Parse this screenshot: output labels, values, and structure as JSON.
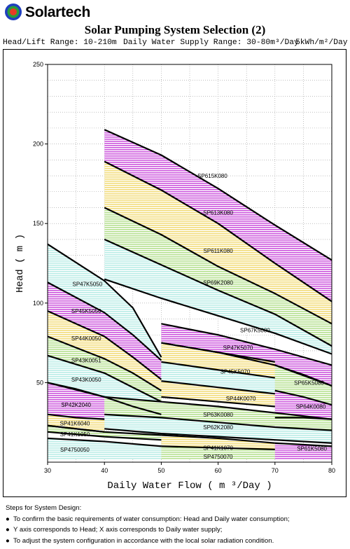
{
  "brand": {
    "name": "Solartech",
    "logo_icon": "circle-logo-icon"
  },
  "header": {
    "title": "Solar Pumping System Selection (2)",
    "head_range": "Head/Lift Range: 10-210m",
    "supply_range": "Daily Water Supply Range: 30-80m³/Day",
    "solar": "5kWh/m²/Day"
  },
  "chart_data": {
    "type": "area",
    "xlabel": "Daily Water Flow ( m ³/Day )",
    "ylabel": "Head ( m )",
    "xlim": [
      30,
      80
    ],
    "ylim": [
      0,
      250
    ],
    "xticks": [
      "30",
      "40",
      "50",
      "60",
      "70",
      "80"
    ],
    "yticks": [
      "50",
      "100",
      "150",
      "200",
      "250"
    ],
    "grid": true,
    "series": [
      {
        "name": "SP615K080",
        "color": "#cc55dd",
        "upper": [
          [
            40,
            209
          ],
          [
            50,
            193
          ],
          [
            60,
            172
          ],
          [
            70,
            149
          ],
          [
            80,
            127
          ]
        ],
        "lower": [
          [
            40,
            189
          ],
          [
            50,
            171
          ],
          [
            60,
            150
          ],
          [
            70,
            125
          ],
          [
            80,
            101
          ]
        ]
      },
      {
        "name": "SP613K080",
        "color": "#f2dc7a",
        "upper": [
          [
            40,
            189
          ],
          [
            50,
            171
          ],
          [
            60,
            150
          ],
          [
            70,
            125
          ],
          [
            80,
            101
          ]
        ],
        "lower": [
          [
            40,
            160
          ],
          [
            50,
            143
          ],
          [
            60,
            123
          ],
          [
            70,
            106
          ],
          [
            80,
            87
          ]
        ]
      },
      {
        "name": "SP611K080",
        "color": "#b5e08f",
        "upper": [
          [
            40,
            160
          ],
          [
            50,
            143
          ],
          [
            60,
            123
          ],
          [
            70,
            106
          ],
          [
            80,
            87
          ]
        ],
        "lower": [
          [
            40,
            140
          ],
          [
            50,
            124
          ],
          [
            60,
            108
          ],
          [
            70,
            93
          ],
          [
            80,
            73
          ]
        ]
      },
      {
        "name": "SP69K2080",
        "color": "#b9ece6",
        "upper": [
          [
            40,
            140
          ],
          [
            50,
            124
          ],
          [
            60,
            108
          ],
          [
            70,
            93
          ],
          [
            80,
            73
          ]
        ],
        "lower": [
          [
            40,
            115
          ],
          [
            50,
            103
          ],
          [
            60,
            92
          ],
          [
            70,
            81
          ],
          [
            80,
            68
          ]
        ]
      },
      {
        "name": "SP47K5050",
        "color": "#b9ece6",
        "upper": [
          [
            30,
            137
          ],
          [
            40,
            114
          ],
          [
            45,
            97
          ],
          [
            50,
            66
          ]
        ],
        "lower": [
          [
            30,
            113
          ],
          [
            40,
            94
          ],
          [
            45,
            80
          ],
          [
            50,
            64
          ]
        ]
      },
      {
        "name": "SP45K5050",
        "color": "#cc55dd",
        "upper": [
          [
            30,
            113
          ],
          [
            40,
            94
          ],
          [
            45,
            80
          ],
          [
            50,
            64
          ]
        ],
        "lower": [
          [
            30,
            95
          ],
          [
            40,
            79
          ],
          [
            45,
            66
          ],
          [
            50,
            52
          ]
        ]
      },
      {
        "name": "SP44K0050",
        "color": "#f2dc7a",
        "upper": [
          [
            30,
            95
          ],
          [
            40,
            79
          ],
          [
            45,
            66
          ],
          [
            50,
            52
          ]
        ],
        "lower": [
          [
            30,
            79
          ],
          [
            40,
            65
          ],
          [
            45,
            56
          ],
          [
            50,
            45
          ]
        ]
      },
      {
        "name": "SP43K0051",
        "color": "#b5e08f",
        "upper": [
          [
            30,
            79
          ],
          [
            40,
            65
          ],
          [
            45,
            56
          ],
          [
            50,
            45
          ]
        ],
        "lower": [
          [
            30,
            67
          ],
          [
            40,
            56
          ],
          [
            45,
            47
          ],
          [
            50,
            38
          ]
        ]
      },
      {
        "name": "SP43K0050",
        "color": "#b9ece6",
        "upper": [
          [
            30,
            67
          ],
          [
            40,
            56
          ],
          [
            45,
            47
          ],
          [
            50,
            38
          ]
        ],
        "lower": [
          [
            30,
            50
          ],
          [
            40,
            41
          ],
          [
            45,
            35
          ],
          [
            50,
            30
          ]
        ]
      },
      {
        "name": "SP42K2040",
        "color": "#cc55dd",
        "upper": [
          [
            30,
            50
          ],
          [
            35,
            46
          ],
          [
            40,
            41
          ]
        ],
        "lower": [
          [
            30,
            30
          ],
          [
            35,
            28
          ],
          [
            40,
            27
          ]
        ]
      },
      {
        "name": "SP67K5080",
        "color": "#cc55dd",
        "upper": [
          [
            50,
            87
          ],
          [
            60,
            80
          ],
          [
            70,
            71
          ],
          [
            80,
            61
          ]
        ],
        "lower": [
          [
            50,
            75
          ],
          [
            60,
            69
          ],
          [
            70,
            61
          ],
          [
            80,
            48
          ]
        ]
      },
      {
        "name": "SP47K5070",
        "color": "#f2dc7a",
        "upper": [
          [
            50,
            75
          ],
          [
            60,
            69
          ],
          [
            70,
            63
          ]
        ],
        "lower": [
          [
            50,
            63
          ],
          [
            60,
            58
          ],
          [
            70,
            53
          ]
        ]
      },
      {
        "name": "SP45K5070",
        "color": "#b9ece6",
        "upper": [
          [
            50,
            63
          ],
          [
            60,
            58
          ],
          [
            70,
            53
          ]
        ],
        "lower": [
          [
            50,
            51
          ],
          [
            60,
            47
          ],
          [
            70,
            43
          ]
        ]
      },
      {
        "name": "SP65K5080",
        "color": "#b5e08f",
        "upper": [
          [
            70,
            61
          ],
          [
            75,
            55
          ],
          [
            80,
            48
          ]
        ],
        "lower": [
          [
            70,
            45
          ],
          [
            75,
            41
          ],
          [
            80,
            36
          ]
        ]
      },
      {
        "name": "SP44K0070",
        "color": "#f2dc7a",
        "upper": [
          [
            50,
            51
          ],
          [
            60,
            47
          ],
          [
            70,
            43
          ]
        ],
        "lower": [
          [
            50,
            41
          ],
          [
            60,
            38
          ],
          [
            70,
            35
          ]
        ]
      },
      {
        "name": "SP64K0080",
        "color": "#cc55dd",
        "upper": [
          [
            70,
            45
          ],
          [
            75,
            41
          ],
          [
            80,
            36
          ]
        ],
        "lower": [
          [
            70,
            28
          ],
          [
            75,
            28
          ],
          [
            80,
            27
          ]
        ]
      },
      {
        "name": "SP63K0080",
        "color": "#b5e08f",
        "upper": [
          [
            40,
            41
          ],
          [
            50,
            38
          ],
          [
            60,
            35
          ],
          [
            70,
            31
          ],
          [
            80,
            27
          ]
        ],
        "lower": [
          [
            40,
            30
          ],
          [
            50,
            28
          ],
          [
            60,
            25
          ],
          [
            70,
            22
          ],
          [
            80,
            20
          ]
        ]
      },
      {
        "name": "SP62K2080",
        "color": "#b9ece6",
        "upper": [
          [
            40,
            30
          ],
          [
            50,
            28
          ],
          [
            60,
            25
          ],
          [
            70,
            22
          ],
          [
            80,
            20
          ]
        ],
        "lower": [
          [
            40,
            21
          ],
          [
            50,
            18
          ],
          [
            60,
            16
          ],
          [
            70,
            14
          ],
          [
            80,
            12
          ]
        ]
      },
      {
        "name": "SP41K6040",
        "color": "#f2dc7a",
        "upper": [
          [
            30,
            30
          ],
          [
            35,
            28
          ],
          [
            40,
            27
          ]
        ],
        "lower": [
          [
            30,
            23
          ],
          [
            35,
            21
          ],
          [
            40,
            19
          ]
        ]
      },
      {
        "name": "SP41K1050",
        "color": "#b5e08f",
        "upper": [
          [
            30,
            23
          ],
          [
            40,
            19
          ],
          [
            50,
            17
          ]
        ],
        "lower": [
          [
            30,
            19
          ],
          [
            40,
            16
          ],
          [
            50,
            14
          ]
        ]
      },
      {
        "name": "SP4750050",
        "color": "#b9ece6",
        "upper": [
          [
            30,
            15
          ],
          [
            40,
            13
          ],
          [
            50,
            10
          ]
        ],
        "lower": [
          [
            30,
            2
          ],
          [
            40,
            2
          ],
          [
            50,
            2
          ]
        ]
      },
      {
        "name": "SP41K1070",
        "color": "#f2dc7a",
        "upper": [
          [
            50,
            17
          ],
          [
            60,
            15
          ],
          [
            70,
            12
          ]
        ],
        "lower": [
          [
            50,
            10
          ],
          [
            60,
            9
          ],
          [
            70,
            8
          ]
        ]
      },
      {
        "name": "SP4750070",
        "color": "#b5e08f",
        "upper": [
          [
            50,
            10
          ],
          [
            60,
            9
          ],
          [
            70,
            8
          ]
        ],
        "lower": [
          [
            50,
            2
          ],
          [
            60,
            2
          ],
          [
            70,
            2
          ]
        ]
      },
      {
        "name": "SP61K5080",
        "color": "#cc55dd",
        "upper": [
          [
            70,
            12
          ],
          [
            75,
            11
          ],
          [
            80,
            10
          ]
        ],
        "lower": [
          [
            70,
            2
          ],
          [
            75,
            2
          ],
          [
            80,
            2
          ]
        ]
      }
    ],
    "labels": [
      {
        "text": "SP615K080",
        "x": 59,
        "y": 180
      },
      {
        "text": "SP613K080",
        "x": 60,
        "y": 157
      },
      {
        "text": "SP611K080",
        "x": 60,
        "y": 133
      },
      {
        "text": "SP69K2080",
        "x": 60,
        "y": 113
      },
      {
        "text": "SP47K5050",
        "x": 37,
        "y": 112
      },
      {
        "text": "SP45K5050",
        "x": 36.8,
        "y": 95
      },
      {
        "text": "SP44K0050",
        "x": 36.8,
        "y": 78
      },
      {
        "text": "SP43K0051",
        "x": 36.8,
        "y": 64
      },
      {
        "text": "SP43K0050",
        "x": 36.8,
        "y": 52
      },
      {
        "text": "SP42K2040",
        "x": 35,
        "y": 36
      },
      {
        "text": "SP67K5080",
        "x": 66.5,
        "y": 83
      },
      {
        "text": "SP47K5070",
        "x": 63.5,
        "y": 72
      },
      {
        "text": "SP45K5070",
        "x": 63,
        "y": 57
      },
      {
        "text": "SP65K5080",
        "x": 76,
        "y": 50
      },
      {
        "text": "SP44K0070",
        "x": 64,
        "y": 40
      },
      {
        "text": "SP64K0080",
        "x": 76.3,
        "y": 35
      },
      {
        "text": "SP63K0080",
        "x": 60,
        "y": 30
      },
      {
        "text": "SP62K2080",
        "x": 60,
        "y": 22
      },
      {
        "text": "SP41K6040",
        "x": 34.8,
        "y": 24.5
      },
      {
        "text": "SP41K1050",
        "x": 34.8,
        "y": 17.5
      },
      {
        "text": "SP4750050",
        "x": 34.8,
        "y": 8
      },
      {
        "text": "SP41K1070",
        "x": 60,
        "y": 9
      },
      {
        "text": "SP4750070",
        "x": 60,
        "y": 3.5
      },
      {
        "text": "SP61K5080",
        "x": 76.5,
        "y": 8.5
      }
    ]
  },
  "notes": {
    "heading": "Steps for System Design:",
    "items": [
      "To confirm the basic requirements of water consumption: Head and Daily water consumption;",
      "Y axis corresponds to Head; X axis corresponds to Daily water supply;",
      "To adjust the system configuration in accordance with the local solar radiation condition."
    ]
  }
}
